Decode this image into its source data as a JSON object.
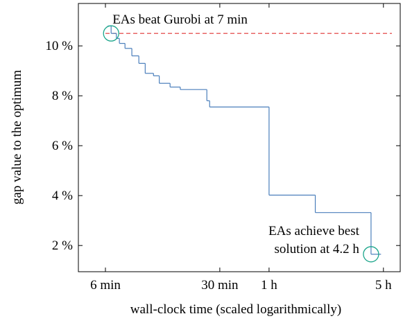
{
  "chart_data": {
    "type": "step-line",
    "xlabel": "wall-clock time (scaled logarithmically)",
    "ylabel": "gap value to the optimum",
    "xscale": "log",
    "xlim": [
      4.1,
      380
    ],
    "ylim": [
      0.95,
      11.7
    ],
    "xticks": [
      {
        "value": 6,
        "label": "6 min"
      },
      {
        "value": 30,
        "label": "30 min"
      },
      {
        "value": 60,
        "label": "1 h"
      },
      {
        "value": 300,
        "label": "5 h"
      }
    ],
    "yticks": [
      {
        "value": 2,
        "label": "2 %"
      },
      {
        "value": 4,
        "label": "4 %"
      },
      {
        "value": 6,
        "label": "6 %"
      },
      {
        "value": 8,
        "label": "8 %"
      },
      {
        "value": 10,
        "label": "10 %"
      }
    ],
    "series": [
      {
        "color": "#4a7ebb",
        "x": [
          6.2,
          6.5,
          7,
          7.3,
          7.9,
          8.7,
          9.6,
          10.5,
          11.8,
          12.8,
          14.9,
          17.2,
          25,
          26,
          60,
          115,
          252,
          290
        ],
        "values": [
          10.8,
          10.5,
          10.3,
          10.1,
          9.9,
          9.6,
          9.3,
          8.9,
          8.8,
          8.5,
          8.35,
          8.25,
          7.8,
          7.55,
          4.02,
          3.32,
          1.65,
          1.65
        ]
      }
    ],
    "reference_line": {
      "value": 10.5,
      "color": "#e03030"
    },
    "annotations": [
      {
        "lines": [
          "EAs beat Gurobi at 7 min"
        ],
        "x": 6.5,
        "y": 10.5,
        "color": "#1aa58a"
      },
      {
        "lines": [
          "EAs achieve best",
          "solution at 4.2 h"
        ],
        "x": 252,
        "y": 1.65,
        "color": "#1aa58a"
      }
    ]
  }
}
